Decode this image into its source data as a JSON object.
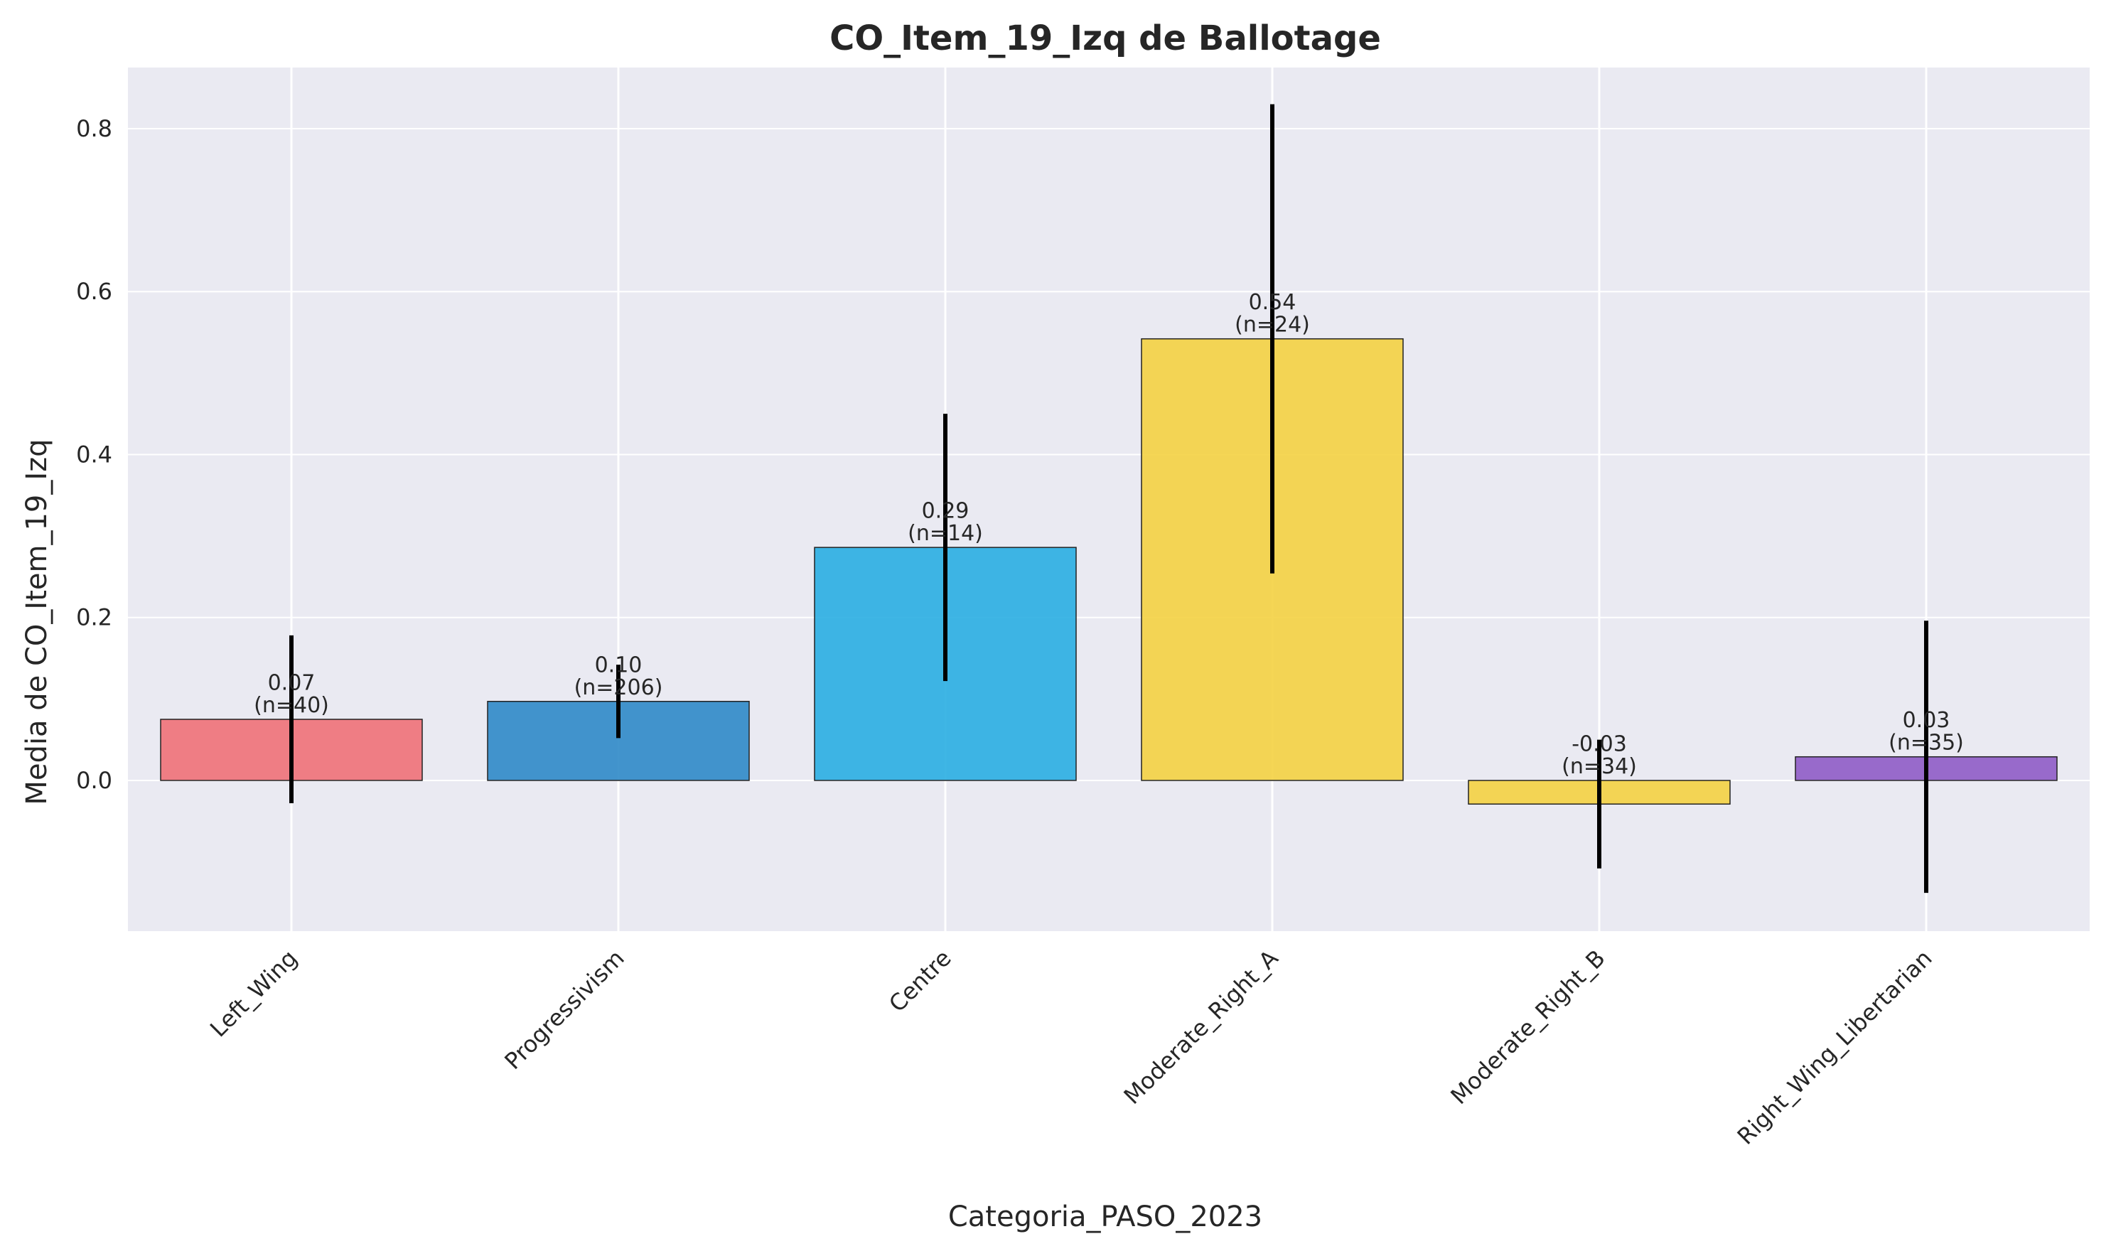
{
  "chart_data": {
    "type": "bar",
    "title": "CO_Item_19_Izq de Ballotage",
    "xlabel": "Categoria_PASO_2023",
    "ylabel": "Media de CO_Item_19_Izq",
    "ylim": [
      -0.185,
      0.875
    ],
    "yticks": [
      0.0,
      0.2,
      0.4,
      0.6,
      0.8
    ],
    "ytick_labels": [
      "0.0",
      "0.2",
      "0.4",
      "0.6",
      "0.8"
    ],
    "grid": true,
    "categories": [
      "Left_Wing",
      "Progressivism",
      "Centre",
      "Moderate_Right_A",
      "Moderate_Right_B",
      "Right_Wing_Libertarian"
    ],
    "values": [
      0.075,
      0.097,
      0.286,
      0.542,
      -0.029,
      0.029
    ],
    "error_low": [
      -0.028,
      0.052,
      0.122,
      0.254,
      -0.108,
      -0.138
    ],
    "error_high": [
      0.178,
      0.142,
      0.45,
      0.83,
      0.05,
      0.196
    ],
    "value_labels": [
      "0.07",
      "0.10",
      "0.29",
      "0.54",
      "-0.03",
      "0.03"
    ],
    "n_labels": [
      "(n=40)",
      "(n=206)",
      "(n=14)",
      "(n=24)",
      "(n=34)",
      "(n=35)"
    ],
    "colors": [
      "#f07178",
      "#2f8ac8",
      "#2aaee2",
      "#f4d142",
      "#f4d142",
      "#8f5cc7"
    ]
  }
}
